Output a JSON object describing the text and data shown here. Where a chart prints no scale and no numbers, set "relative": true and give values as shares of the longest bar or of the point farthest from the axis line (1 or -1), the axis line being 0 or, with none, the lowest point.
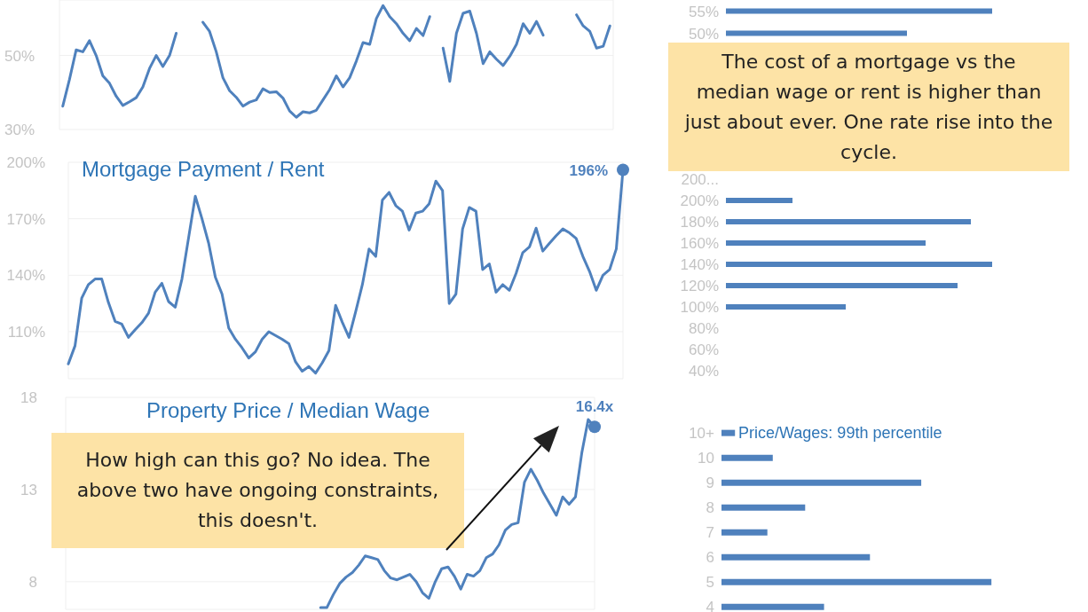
{
  "chart_data": [
    {
      "type": "line",
      "categories": [
        null,
        null,
        null,
        null,
        null,
        null,
        null,
        null,
        null,
        null,
        null,
        null,
        null,
        null,
        null,
        null,
        null,
        null,
        null,
        null,
        null,
        null,
        null,
        null,
        null,
        null,
        null,
        null,
        null,
        null,
        null,
        null,
        null,
        null,
        null,
        null,
        null,
        null,
        null,
        null,
        null,
        null,
        null,
        null,
        null,
        null,
        null,
        null,
        null,
        null,
        null,
        null,
        null,
        null,
        null,
        null,
        null,
        null,
        null,
        null,
        null,
        null,
        null,
        null,
        null,
        null,
        null,
        null,
        null,
        null,
        null,
        null,
        null,
        null,
        null,
        null,
        null,
        null,
        null,
        null,
        null,
        null,
        null
      ],
      "values": [
        36.3,
        43.5,
        51.5,
        51,
        54,
        50,
        44.5,
        42.5,
        39,
        36.5,
        37.5,
        38.6,
        41.5,
        46.5,
        50,
        47,
        50,
        56,
        null,
        null,
        null,
        59,
        56.5,
        51,
        44,
        40.5,
        38.7,
        36.3,
        37.4,
        38,
        41,
        40,
        40.2,
        38.5,
        35,
        33.3,
        34.8,
        34.5,
        35.2,
        38,
        40.8,
        44.5,
        41.5,
        44,
        48.5,
        53.5,
        53,
        60,
        63.5,
        60.5,
        58.6,
        56,
        54,
        57.3,
        55.4,
        60.5,
        null,
        52,
        43,
        56,
        61.4,
        62,
        56,
        47.8,
        51,
        49,
        47.3,
        49.8,
        53,
        58.6,
        56,
        59.2,
        55.5,
        null,
        null,
        null,
        null,
        61,
        58,
        56.5,
        52,
        52.5,
        58
      ],
      "color": "#4f81bd",
      "ylim": [
        30,
        65
      ],
      "yticks": [
        {
          "value": 30,
          "label": "30%"
        },
        {
          "value": 50,
          "label": "50%"
        }
      ],
      "grid": true,
      "tick_labels": "y"
    },
    {
      "type": "bar",
      "orientation": "horizontal",
      "relative": true,
      "categories": [
        "55%",
        "50%"
      ],
      "values": [
        1,
        0.68
      ],
      "color": "#4f81bd",
      "annotations": [
        "The cost of a mortgage vs the median wage or rent is higher than just about ever. One rate rise into the cycle."
      ]
    },
    {
      "type": "line",
      "title": "Mortgage Payment / Rent",
      "categories": [
        null,
        null,
        null,
        null,
        null,
        null,
        null,
        null,
        null,
        null,
        null,
        null,
        null,
        null,
        null,
        null,
        null,
        null,
        null,
        null,
        null,
        null,
        null,
        null,
        null,
        null,
        null,
        null,
        null,
        null,
        null,
        null,
        null,
        null,
        null,
        null,
        null,
        null,
        null,
        null,
        null,
        null,
        null,
        null,
        null,
        null,
        null,
        null,
        null,
        null,
        null,
        null,
        null,
        null,
        null,
        null,
        null,
        null,
        null,
        null,
        null,
        null,
        null,
        null,
        null,
        null,
        null,
        null,
        null,
        null,
        null,
        null,
        null,
        null,
        null,
        null,
        null,
        null,
        null,
        null,
        null,
        null,
        null,
        null
      ],
      "values": [
        92.9,
        102.5,
        127.8,
        135,
        138,
        138,
        125.5,
        115.5,
        114,
        107,
        111,
        114.8,
        119.8,
        131,
        135.7,
        126,
        123,
        138,
        160,
        182,
        170,
        157,
        139,
        130,
        112,
        106,
        101.4,
        96,
        99.3,
        106,
        110,
        108,
        106,
        103.6,
        94,
        89,
        91.5,
        88,
        93.5,
        100,
        124,
        115,
        107,
        120.7,
        135,
        153.9,
        150,
        180,
        184,
        177,
        174,
        164,
        173,
        174,
        178,
        190,
        185,
        125,
        130,
        164.6,
        176,
        174,
        143,
        146,
        131,
        135,
        132,
        141,
        152,
        155,
        165,
        152.8,
        157,
        161,
        164.6,
        162.5,
        159.5,
        150,
        142,
        132,
        140,
        143,
        154,
        196
      ],
      "color": "#4f81bd",
      "ylim": [
        85,
        200
      ],
      "yticks": [
        {
          "value": 110,
          "label": "110%"
        },
        {
          "value": 140,
          "label": "140%"
        },
        {
          "value": 170,
          "label": "170%"
        },
        {
          "value": 200,
          "label": "200%"
        }
      ],
      "grid": true,
      "tick_labels": "y",
      "annotations": [
        "196%"
      ]
    },
    {
      "type": "bar",
      "orientation": "horizontal",
      "relative": true,
      "categories": [
        "200...",
        "200%",
        "180%",
        "160%",
        "140%",
        "120%",
        "100%",
        "80%",
        "60%",
        "40%"
      ],
      "values": [
        null,
        0.25,
        0.92,
        0.75,
        1,
        0.87,
        0.45,
        0,
        0,
        0
      ],
      "color": "#4f81bd"
    },
    {
      "type": "line",
      "title": "Property Price / Median Wage",
      "categories": [
        null,
        null,
        null,
        null,
        null,
        null,
        null,
        null,
        null,
        null,
        null,
        null,
        null,
        null,
        null,
        null,
        null,
        null,
        null,
        null,
        null,
        null,
        null,
        null,
        null,
        null,
        null,
        null,
        null,
        null,
        null,
        null,
        null,
        null,
        null,
        null,
        null,
        null,
        null,
        null,
        null,
        null,
        null,
        null,
        null,
        null,
        null,
        null,
        null,
        null,
        null,
        null,
        null,
        null,
        null,
        null,
        null,
        null,
        null,
        null,
        null,
        null,
        null,
        null,
        null,
        null,
        null,
        null,
        null,
        null,
        null,
        null,
        null,
        null,
        null,
        null,
        null,
        null,
        null,
        null,
        null,
        null,
        null,
        null
      ],
      "values": [
        null,
        null,
        null,
        null,
        null,
        null,
        null,
        null,
        null,
        null,
        null,
        null,
        null,
        null,
        null,
        null,
        null,
        null,
        null,
        null,
        null,
        null,
        null,
        null,
        null,
        null,
        null,
        null,
        null,
        null,
        null,
        null,
        null,
        null,
        null,
        null,
        null,
        null,
        null,
        null,
        6.6,
        6.6,
        7.3,
        7.9,
        8.25,
        8.5,
        8.9,
        9.4,
        9.3,
        9.2,
        8.6,
        8.2,
        8.1,
        8.25,
        8.4,
        8.0,
        7.4,
        7.1,
        8.0,
        8.7,
        8.8,
        8.3,
        7.6,
        8.4,
        8.3,
        8.6,
        9.3,
        9.5,
        10.0,
        10.8,
        11.1,
        11.2,
        13.4,
        14.1,
        13.5,
        12.8,
        12.2,
        11.6,
        12.6,
        12.2,
        12.6,
        15.0,
        16.8,
        16.4
      ],
      "color": "#4f81bd",
      "ylim": [
        6.5,
        18
      ],
      "yticks": [
        8,
        13,
        18
      ],
      "grid": true,
      "tick_labels": "y",
      "annotations": [
        "16.4x",
        "How high can this go? No idea. The above two have ongoing constraints, this doesn't."
      ]
    },
    {
      "type": "bar",
      "orientation": "horizontal",
      "relative": true,
      "title": "Price/Wages: 99th percentile",
      "categories": [
        "10+",
        "10",
        "9",
        "8",
        "7",
        "6",
        "5",
        "4"
      ],
      "values": [
        0.05,
        0.19,
        0.74,
        0.31,
        0.17,
        0.55,
        1,
        0.38
      ],
      "color": "#4f81bd"
    }
  ]
}
